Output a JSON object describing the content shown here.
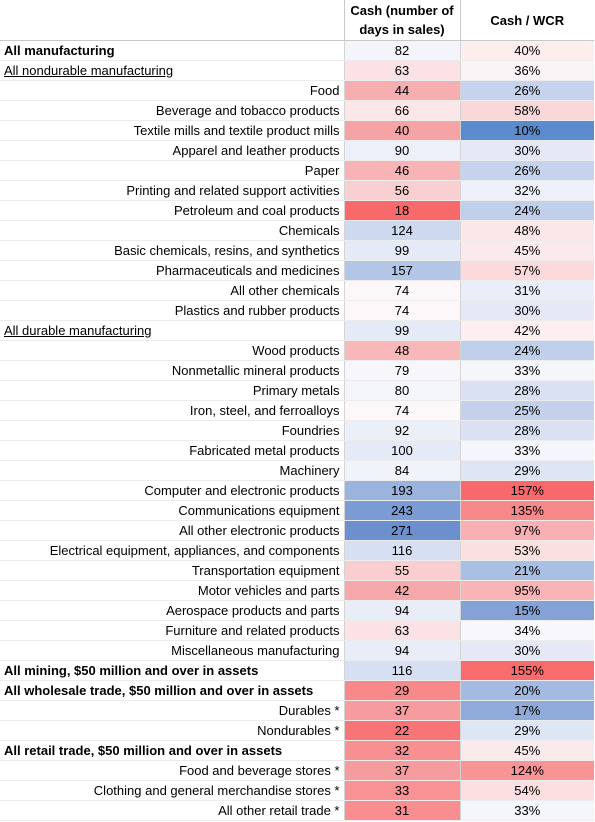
{
  "headers": {
    "label": "",
    "cash": "Cash (number of days in sales)",
    "wcr": "Cash / WCR"
  },
  "rows": [
    {
      "label": "All manufacturing",
      "cash": "82",
      "wcr": "40%",
      "style": "bold",
      "cash_color": "#f4f4fb",
      "wcr_color": "#fdeeee"
    },
    {
      "label": "All nondurable manufacturing",
      "cash": "63",
      "wcr": "36%",
      "style": "underline",
      "cash_color": "#fbe2e4",
      "wcr_color": "#fbf4f6"
    },
    {
      "label": "Food",
      "cash": "44",
      "wcr": "26%",
      "style": "",
      "cash_color": "#f7aeb1",
      "wcr_color": "#c6d3ec"
    },
    {
      "label": "Beverage and tobacco products",
      "cash": "66",
      "wcr": "58%",
      "style": "",
      "cash_color": "#fbe7e8",
      "wcr_color": "#fad7d9"
    },
    {
      "label": "Textile mills and textile product mills",
      "cash": "40",
      "wcr": "10%",
      "style": "",
      "cash_color": "#f6a3a5",
      "wcr_color": "#5b8bcd"
    },
    {
      "label": "Apparel and leather products",
      "cash": "90",
      "wcr": "30%",
      "style": "",
      "cash_color": "#ecf0f9",
      "wcr_color": "#e4e9f5"
    },
    {
      "label": "Paper",
      "cash": "46",
      "wcr": "26%",
      "style": "",
      "cash_color": "#f8b3b6",
      "wcr_color": "#c6d3ec"
    },
    {
      "label": "Printing and related support activities",
      "cash": "56",
      "wcr": "32%",
      "style": "",
      "cash_color": "#facfd2",
      "wcr_color": "#eef1f9"
    },
    {
      "label": "Petroleum and coal products",
      "cash": "18",
      "wcr": "24%",
      "style": "",
      "cash_color": "#f8696b",
      "wcr_color": "#c0cfea"
    },
    {
      "label": "Chemicals",
      "cash": "124",
      "wcr": "48%",
      "style": "",
      "cash_color": "#cdd9ef",
      "wcr_color": "#fbe6e8"
    },
    {
      "label": "Basic chemicals, resins, and synthetics",
      "cash": "99",
      "wcr": "45%",
      "style": "",
      "cash_color": "#e5ebf6",
      "wcr_color": "#fbeaeb"
    },
    {
      "label": "Pharmaceuticals and medicines",
      "cash": "157",
      "wcr": "57%",
      "style": "",
      "cash_color": "#b3c6e6",
      "wcr_color": "#fbdadc"
    },
    {
      "label": "All other chemicals",
      "cash": "74",
      "wcr": "31%",
      "style": "",
      "cash_color": "#fcf8f9",
      "wcr_color": "#eaeef8"
    },
    {
      "label": "Plastics and rubber products",
      "cash": "74",
      "wcr": "30%",
      "style": "",
      "cash_color": "#fcf8f9",
      "wcr_color": "#e4e9f5"
    },
    {
      "label": "All durable manufacturing",
      "cash": "99",
      "wcr": "42%",
      "style": "underline",
      "cash_color": "#e5ebf6",
      "wcr_color": "#fdeeef"
    },
    {
      "label": "Wood products",
      "cash": "48",
      "wcr": "24%",
      "style": "",
      "cash_color": "#f8b8ba",
      "wcr_color": "#c0cfea"
    },
    {
      "label": "Nonmetallic mineral products",
      "cash": "79",
      "wcr": "33%",
      "style": "",
      "cash_color": "#f6f6fb",
      "wcr_color": "#f4f6fb"
    },
    {
      "label": "Primary metals",
      "cash": "80",
      "wcr": "28%",
      "style": "",
      "cash_color": "#f5f6fb",
      "wcr_color": "#d9e1f2"
    },
    {
      "label": "Iron, steel, and ferroalloys",
      "cash": "74",
      "wcr": "25%",
      "style": "",
      "cash_color": "#fcf8f9",
      "wcr_color": "#c3d1eb"
    },
    {
      "label": "Foundries",
      "cash": "92",
      "wcr": "28%",
      "style": "",
      "cash_color": "#eaeff8",
      "wcr_color": "#d9e1f2"
    },
    {
      "label": "Fabricated metal products",
      "cash": "100",
      "wcr": "33%",
      "style": "",
      "cash_color": "#e4eaf6",
      "wcr_color": "#f4f6fb"
    },
    {
      "label": "Machinery",
      "cash": "84",
      "wcr": "29%",
      "style": "",
      "cash_color": "#f1f3fa",
      "wcr_color": "#dee5f4"
    },
    {
      "label": "Computer and electronic products",
      "cash": "193",
      "wcr": "157%",
      "style": "",
      "cash_color": "#9bb4dd",
      "wcr_color": "#f8696b"
    },
    {
      "label": "Communications equipment",
      "cash": "243",
      "wcr": "135%",
      "style": "",
      "cash_color": "#7a9bd3",
      "wcr_color": "#f8898b"
    },
    {
      "label": "All other electronic products",
      "cash": "271",
      "wcr": "97%",
      "style": "",
      "cash_color": "#6c8fcd",
      "wcr_color": "#f9b0b2"
    },
    {
      "label": "Electrical equipment, appliances, and components",
      "cash": "116",
      "wcr": "53%",
      "style": "",
      "cash_color": "#d7e0f2",
      "wcr_color": "#fbe0e2"
    },
    {
      "label": "Transportation equipment",
      "cash": "55",
      "wcr": "21%",
      "style": "",
      "cash_color": "#faced0",
      "wcr_color": "#a9bfe4"
    },
    {
      "label": "Motor vehicles and parts",
      "cash": "42",
      "wcr": "95%",
      "style": "",
      "cash_color": "#f7a8ab",
      "wcr_color": "#f9b4b6"
    },
    {
      "label": "Aerospace products and parts",
      "cash": "94",
      "wcr": "15%",
      "style": "",
      "cash_color": "#e8edf7",
      "wcr_color": "#84a2d5"
    },
    {
      "label": "Furniture and related products",
      "cash": "63",
      "wcr": "34%",
      "style": "",
      "cash_color": "#fbe2e4",
      "wcr_color": "#f8f8fc"
    },
    {
      "label": "Miscellaneous manufacturing",
      "cash": "94",
      "wcr": "30%",
      "style": "",
      "cash_color": "#e8edf7",
      "wcr_color": "#e4e9f5"
    },
    {
      "label": "All mining, $50 million and over in assets",
      "cash": "116",
      "wcr": "155%",
      "style": "bold section",
      "cash_color": "#d7e0f2",
      "wcr_color": "#f86c6e"
    },
    {
      "label": "All wholesale trade, $50 million and over in assets",
      "cash": "29",
      "wcr": "20%",
      "style": "bold section",
      "cash_color": "#f8898b",
      "wcr_color": "#a3bbe1"
    },
    {
      "label": "Durables *",
      "cash": "37",
      "wcr": "17%",
      "style": "",
      "cash_color": "#f69c9e",
      "wcr_color": "#90aad9"
    },
    {
      "label": "Nondurables *",
      "cash": "22",
      "wcr": "29%",
      "style": "",
      "cash_color": "#f77577",
      "wcr_color": "#dee5f4"
    },
    {
      "label": "All retail trade, $50 million and over in assets",
      "cash": "32",
      "wcr": "45%",
      "style": "bold section",
      "cash_color": "#f88f91",
      "wcr_color": "#fbeaeb"
    },
    {
      "label": "Food and beverage stores *",
      "cash": "37",
      "wcr": "124%",
      "style": "",
      "cash_color": "#f69c9e",
      "wcr_color": "#f99496"
    },
    {
      "label": "Clothing and general merchandise stores *",
      "cash": "33",
      "wcr": "54%",
      "style": "",
      "cash_color": "#f89294",
      "wcr_color": "#fbdfe1"
    },
    {
      "label": "All other retail trade *",
      "cash": "31",
      "wcr": "33%",
      "style": "",
      "cash_color": "#f88e90",
      "wcr_color": "#f4f6fb"
    }
  ]
}
